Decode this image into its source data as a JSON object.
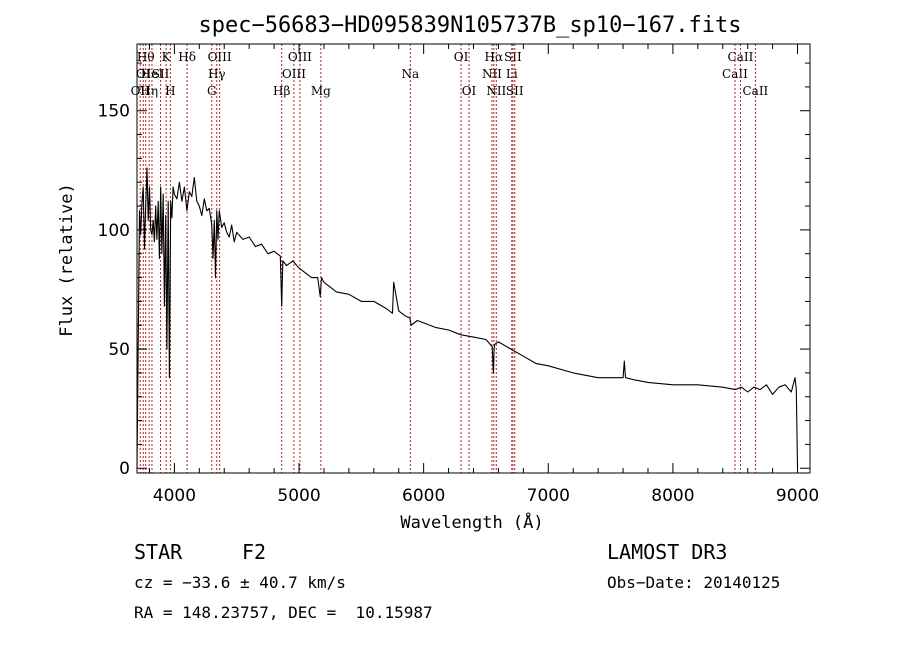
{
  "chart_data": {
    "type": "line",
    "title": "spec−56683−HD095839N105737B_sp10−167.fits",
    "xlabel": "Wavelength (Å)",
    "ylabel": "Flux (relative)",
    "xlim": [
      3700,
      9100
    ],
    "ylim": [
      -2,
      178
    ],
    "x_ticks": [
      4000,
      5000,
      6000,
      7000,
      8000,
      9000
    ],
    "x_tick_labels": [
      "4000",
      "5000",
      "6000",
      "7000",
      "8000",
      "9000"
    ],
    "y_ticks": [
      0,
      50,
      100,
      150
    ],
    "y_tick_labels": [
      "0",
      "50",
      "100",
      "150"
    ],
    "series": [
      {
        "name": "spectrum",
        "x": [
          3700,
          3710,
          3720,
          3730,
          3740,
          3750,
          3760,
          3770,
          3780,
          3790,
          3800,
          3810,
          3820,
          3830,
          3840,
          3850,
          3860,
          3870,
          3880,
          3890,
          3900,
          3910,
          3920,
          3930,
          3940,
          3950,
          3960,
          3970,
          3980,
          3990,
          4000,
          4020,
          4040,
          4060,
          4080,
          4100,
          4120,
          4140,
          4160,
          4180,
          4200,
          4220,
          4240,
          4260,
          4280,
          4300,
          4310,
          4320,
          4330,
          4340,
          4350,
          4360,
          4380,
          4400,
          4420,
          4440,
          4460,
          4480,
          4500,
          4550,
          4600,
          4650,
          4700,
          4750,
          4800,
          4850,
          4861,
          4870,
          4900,
          4950,
          5000,
          5050,
          5100,
          5150,
          5170,
          5180,
          5200,
          5250,
          5300,
          5400,
          5500,
          5600,
          5700,
          5750,
          5760,
          5800,
          5850,
          5890,
          5900,
          5950,
          6000,
          6100,
          6200,
          6300,
          6400,
          6500,
          6550,
          6560,
          6565,
          6570,
          6600,
          6700,
          6800,
          6900,
          7000,
          7200,
          7400,
          7500,
          7600,
          7610,
          7620,
          7700,
          7800,
          8000,
          8200,
          8400,
          8500,
          8550,
          8600,
          8650,
          8700,
          8750,
          8800,
          8850,
          8900,
          8950,
          8980,
          8990,
          9000
        ],
        "values": [
          0,
          52,
          108,
          98,
          112,
          118,
          92,
          110,
          126,
          104,
          118,
          100,
          98,
          104,
          95,
          110,
          96,
          112,
          88,
          118,
          90,
          115,
          68,
          106,
          50,
          112,
          38,
          112,
          105,
          118,
          115,
          113,
          120,
          112,
          118,
          108,
          116,
          114,
          122,
          112,
          110,
          106,
          113,
          108,
          109,
          102,
          88,
          104,
          80,
          108,
          96,
          108,
          101,
          103,
          99,
          97,
          102,
          95,
          99,
          96,
          97,
          93,
          94,
          90,
          91,
          89,
          68,
          87,
          85,
          87,
          84,
          82,
          80,
          80,
          72,
          80,
          78,
          76,
          74,
          73,
          70,
          70,
          67,
          65,
          78,
          66,
          64,
          63,
          60,
          62,
          61,
          59,
          58,
          56,
          55,
          54,
          51,
          40,
          50,
          52,
          53,
          50,
          47,
          44,
          43,
          40,
          38,
          38,
          38,
          45,
          38,
          37,
          36,
          35,
          35,
          34,
          33,
          34,
          32,
          34,
          33,
          35,
          31,
          34,
          35,
          32,
          38,
          33,
          0
        ]
      }
    ],
    "line_markers": [
      {
        "wl": 3726,
        "label": "OII",
        "row": 3
      },
      {
        "wl": 3750,
        "label": "OI",
        "row": 2
      },
      {
        "wl": 3770,
        "label": "Hθ",
        "row": 1
      },
      {
        "wl": 3798,
        "label": "Hη",
        "row": 3
      },
      {
        "wl": 3820,
        "label": "HeI",
        "row": 2
      },
      {
        "wl": 3889,
        "label": "SII",
        "row": 2
      },
      {
        "wl": 3934,
        "label": "K",
        "row": 1
      },
      {
        "wl": 3968,
        "label": "H",
        "row": 3
      },
      {
        "wl": 4102,
        "label": "Hδ",
        "row": 1
      },
      {
        "wl": 4300,
        "label": "G",
        "row": 3
      },
      {
        "wl": 4340,
        "label": "Hγ",
        "row": 2
      },
      {
        "wl": 4363,
        "label": "OIII",
        "row": 1
      },
      {
        "wl": 4861,
        "label": "Hβ",
        "row": 3
      },
      {
        "wl": 4959,
        "label": "OIII",
        "row": 2
      },
      {
        "wl": 5007,
        "label": "OIII",
        "row": 1
      },
      {
        "wl": 5175,
        "label": "Mg",
        "row": 3
      },
      {
        "wl": 5893,
        "label": "Na",
        "row": 2
      },
      {
        "wl": 6300,
        "label": "OI",
        "row": 1
      },
      {
        "wl": 6364,
        "label": "OI",
        "row": 3
      },
      {
        "wl": 6548,
        "label": "NII",
        "row": 2
      },
      {
        "wl": 6563,
        "label": "Hα",
        "row": 1
      },
      {
        "wl": 6583,
        "label": "NII",
        "row": 3
      },
      {
        "wl": 6707,
        "label": "Li",
        "row": 2
      },
      {
        "wl": 6716,
        "label": "SII",
        "row": 1
      },
      {
        "wl": 6731,
        "label": "SII",
        "row": 3
      },
      {
        "wl": 8498,
        "label": "CaII",
        "row": 2
      },
      {
        "wl": 8542,
        "label": "CaII",
        "row": 1
      },
      {
        "wl": 8662,
        "label": "CaII",
        "row": 3
      }
    ]
  },
  "info": {
    "object_class": "STAR",
    "subclass": "F2",
    "survey": "LAMOST DR3",
    "cz": "cz = −33.6 ± 40.7 km/s",
    "obs_date": "Obs−Date: 20140125",
    "coords": "RA = 148.23757, DEC =  10.15987"
  }
}
